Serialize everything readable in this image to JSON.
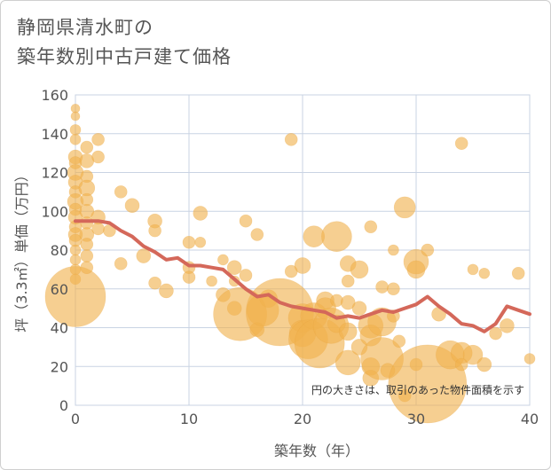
{
  "chart_title_line1": "静岡県清水町の",
  "chart_title_line2": "築年数別中古戸建て価格",
  "colors": {
    "bubble": "#f0b24e",
    "line": "#d4685a",
    "grid": "#c9d3e3",
    "text": "#555555"
  },
  "chart_data": {
    "type": "scatter",
    "title": "静岡県清水町の 築年数別中古戸建て価格",
    "xlabel": "築年数（年）",
    "ylabel": "坪（3.3㎡）単価（万円）",
    "xlim": [
      0,
      40
    ],
    "ylim": [
      0,
      160
    ],
    "xticks": [
      0,
      10,
      20,
      30,
      40
    ],
    "yticks": [
      0,
      20,
      40,
      60,
      80,
      100,
      120,
      140,
      160
    ],
    "annotation": "円の大きさは、取引のあった物件面積を示す",
    "grid": true,
    "bubbles": [
      {
        "x": 0,
        "y": 153,
        "s": 5
      },
      {
        "x": 0,
        "y": 149,
        "s": 5
      },
      {
        "x": 0,
        "y": 142,
        "s": 6
      },
      {
        "x": 0,
        "y": 137,
        "s": 6
      },
      {
        "x": 0,
        "y": 128,
        "s": 8
      },
      {
        "x": 0,
        "y": 125,
        "s": 7
      },
      {
        "x": 0,
        "y": 120,
        "s": 9
      },
      {
        "x": 0,
        "y": 115,
        "s": 8
      },
      {
        "x": 0,
        "y": 110,
        "s": 7
      },
      {
        "x": 0,
        "y": 105,
        "s": 9
      },
      {
        "x": 0,
        "y": 101,
        "s": 7
      },
      {
        "x": 0,
        "y": 97,
        "s": 8
      },
      {
        "x": 0,
        "y": 92,
        "s": 7
      },
      {
        "x": 0,
        "y": 88,
        "s": 8
      },
      {
        "x": 0,
        "y": 85,
        "s": 7
      },
      {
        "x": 0,
        "y": 80,
        "s": 6
      },
      {
        "x": 0,
        "y": 75,
        "s": 6
      },
      {
        "x": 0,
        "y": 70,
        "s": 6
      },
      {
        "x": 0,
        "y": 65,
        "s": 6
      },
      {
        "x": 0,
        "y": 56,
        "s": 34
      },
      {
        "x": 1,
        "y": 133,
        "s": 7
      },
      {
        "x": 1,
        "y": 126,
        "s": 8
      },
      {
        "x": 1,
        "y": 118,
        "s": 7
      },
      {
        "x": 1,
        "y": 112,
        "s": 9
      },
      {
        "x": 1,
        "y": 106,
        "s": 7
      },
      {
        "x": 1,
        "y": 100,
        "s": 8
      },
      {
        "x": 1,
        "y": 94,
        "s": 7
      },
      {
        "x": 1,
        "y": 88,
        "s": 8
      },
      {
        "x": 1,
        "y": 83,
        "s": 7
      },
      {
        "x": 1,
        "y": 77,
        "s": 7
      },
      {
        "x": 1,
        "y": 71,
        "s": 7
      },
      {
        "x": 2,
        "y": 137,
        "s": 7
      },
      {
        "x": 2,
        "y": 128,
        "s": 7
      },
      {
        "x": 2,
        "y": 97,
        "s": 8
      },
      {
        "x": 2,
        "y": 91,
        "s": 7
      },
      {
        "x": 3,
        "y": 90,
        "s": 7
      },
      {
        "x": 4,
        "y": 110,
        "s": 7
      },
      {
        "x": 4,
        "y": 73,
        "s": 7
      },
      {
        "x": 5,
        "y": 103,
        "s": 8
      },
      {
        "x": 6,
        "y": 77,
        "s": 8
      },
      {
        "x": 7,
        "y": 95,
        "s": 8
      },
      {
        "x": 7,
        "y": 90,
        "s": 7
      },
      {
        "x": 7,
        "y": 63,
        "s": 7
      },
      {
        "x": 8,
        "y": 59,
        "s": 8
      },
      {
        "x": 10,
        "y": 84,
        "s": 7
      },
      {
        "x": 10,
        "y": 71,
        "s": 7
      },
      {
        "x": 10,
        "y": 66,
        "s": 7
      },
      {
        "x": 11,
        "y": 99,
        "s": 8
      },
      {
        "x": 11,
        "y": 84,
        "s": 6
      },
      {
        "x": 12,
        "y": 64,
        "s": 6
      },
      {
        "x": 13,
        "y": 75,
        "s": 6
      },
      {
        "x": 13,
        "y": 57,
        "s": 8
      },
      {
        "x": 14,
        "y": 71,
        "s": 8
      },
      {
        "x": 14,
        "y": 64,
        "s": 6
      },
      {
        "x": 14,
        "y": 50,
        "s": 8
      },
      {
        "x": 15,
        "y": 95,
        "s": 7
      },
      {
        "x": 15,
        "y": 67,
        "s": 7
      },
      {
        "x": 14.5,
        "y": 47,
        "s": 30
      },
      {
        "x": 16,
        "y": 88,
        "s": 7
      },
      {
        "x": 16,
        "y": 39,
        "s": 8
      },
      {
        "x": 17,
        "y": 55,
        "s": 10
      },
      {
        "x": 16.5,
        "y": 49,
        "s": 18
      },
      {
        "x": 18,
        "y": 48,
        "s": 38
      },
      {
        "x": 19,
        "y": 137,
        "s": 7
      },
      {
        "x": 19,
        "y": 69,
        "s": 7
      },
      {
        "x": 20,
        "y": 72,
        "s": 9
      },
      {
        "x": 20,
        "y": 45,
        "s": 16
      },
      {
        "x": 20,
        "y": 37,
        "s": 15
      },
      {
        "x": 20.5,
        "y": 34,
        "s": 22
      },
      {
        "x": 21,
        "y": 87,
        "s": 12
      },
      {
        "x": 21,
        "y": 46,
        "s": 15
      },
      {
        "x": 21.5,
        "y": 32,
        "s": 28
      },
      {
        "x": 22,
        "y": 54,
        "s": 10
      },
      {
        "x": 22,
        "y": 50,
        "s": 12
      },
      {
        "x": 22.5,
        "y": 41,
        "s": 20
      },
      {
        "x": 23,
        "y": 87,
        "s": 17
      },
      {
        "x": 23,
        "y": 54,
        "s": 7
      },
      {
        "x": 23,
        "y": 42,
        "s": 10
      },
      {
        "x": 24,
        "y": 73,
        "s": 9
      },
      {
        "x": 24,
        "y": 64,
        "s": 7
      },
      {
        "x": 24,
        "y": 53,
        "s": 8
      },
      {
        "x": 24,
        "y": 38,
        "s": 10
      },
      {
        "x": 24,
        "y": 22,
        "s": 14
      },
      {
        "x": 25,
        "y": 70,
        "s": 10
      },
      {
        "x": 25,
        "y": 50,
        "s": 8
      },
      {
        "x": 25,
        "y": 30,
        "s": 9
      },
      {
        "x": 26,
        "y": 92,
        "s": 7
      },
      {
        "x": 26,
        "y": 41,
        "s": 14
      },
      {
        "x": 26,
        "y": 36,
        "s": 12
      },
      {
        "x": 26,
        "y": 20,
        "s": 10
      },
      {
        "x": 26,
        "y": 14,
        "s": 9
      },
      {
        "x": 27,
        "y": 61,
        "s": 7
      },
      {
        "x": 27,
        "y": 43,
        "s": 16
      },
      {
        "x": 27,
        "y": 24,
        "s": 24
      },
      {
        "x": 27.5,
        "y": 18,
        "s": 8
      },
      {
        "x": 28,
        "y": 80,
        "s": 6
      },
      {
        "x": 28,
        "y": 60,
        "s": 7
      },
      {
        "x": 28,
        "y": 46,
        "s": 7
      },
      {
        "x": 28.5,
        "y": 33,
        "s": 7
      },
      {
        "x": 29,
        "y": 102,
        "s": 12
      },
      {
        "x": 29,
        "y": 5,
        "s": 7
      },
      {
        "x": 30,
        "y": 74,
        "s": 14
      },
      {
        "x": 30,
        "y": 70,
        "s": 10
      },
      {
        "x": 30,
        "y": 21,
        "s": 7
      },
      {
        "x": 31,
        "y": 80,
        "s": 7
      },
      {
        "x": 31,
        "y": 11,
        "s": 44
      },
      {
        "x": 32,
        "y": 47,
        "s": 8
      },
      {
        "x": 33,
        "y": 26,
        "s": 16
      },
      {
        "x": 34,
        "y": 135,
        "s": 7
      },
      {
        "x": 34,
        "y": 27,
        "s": 12
      },
      {
        "x": 34,
        "y": 21,
        "s": 7
      },
      {
        "x": 35,
        "y": 70,
        "s": 6
      },
      {
        "x": 35,
        "y": 26,
        "s": 11
      },
      {
        "x": 36,
        "y": 68,
        "s": 6
      },
      {
        "x": 36,
        "y": 21,
        "s": 8
      },
      {
        "x": 37,
        "y": 37,
        "s": 7
      },
      {
        "x": 38,
        "y": 41,
        "s": 8
      },
      {
        "x": 39,
        "y": 68,
        "s": 7
      },
      {
        "x": 40,
        "y": 24,
        "s": 6
      }
    ],
    "series": [
      {
        "x": [
          0,
          1,
          2,
          3,
          4,
          5,
          6,
          7,
          8,
          9,
          10,
          11,
          12,
          13,
          14,
          15,
          16,
          17,
          18,
          19,
          20,
          21,
          22,
          23,
          24,
          25,
          26,
          27,
          28,
          29,
          30,
          31,
          32,
          33,
          34,
          35,
          36,
          37,
          38,
          39,
          40
        ],
        "values": [
          95,
          95,
          95,
          94,
          90,
          87,
          82,
          79,
          75,
          76,
          72,
          72,
          71,
          70,
          65,
          60,
          56,
          57,
          53,
          51,
          50,
          49,
          48,
          45,
          46,
          45,
          47,
          49,
          48,
          50,
          52,
          56,
          51,
          47,
          42,
          41,
          38,
          42,
          51,
          49,
          47
        ]
      }
    ]
  }
}
